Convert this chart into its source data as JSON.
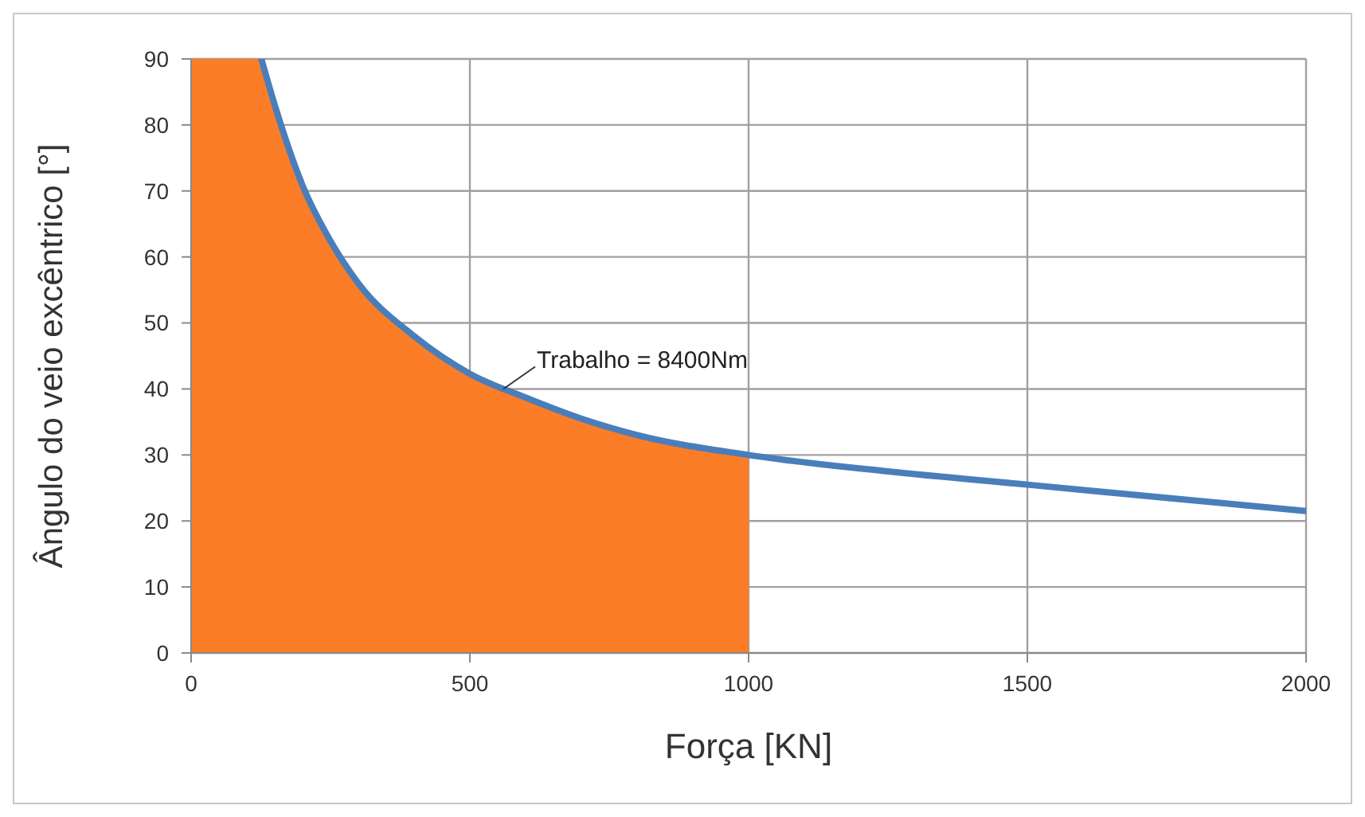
{
  "chart_data": {
    "type": "line",
    "xlabel": "Força [KN]",
    "ylabel": "Ângulo do veio excêntrico [°]",
    "xlim": [
      0,
      2000
    ],
    "xticks": [
      0,
      500,
      1000,
      1500,
      2000
    ],
    "ylim": [
      0,
      90
    ],
    "yticks": [
      0,
      10,
      20,
      30,
      40,
      50,
      60,
      70,
      80,
      90
    ],
    "grid": true,
    "legend": false,
    "marker": "none",
    "line_style": "solid",
    "annotations": [
      {
        "text": "Trabalho = 8400Nm",
        "x": 560,
        "y": 40
      }
    ],
    "series": [
      {
        "type": "area",
        "color": "#fb7d27",
        "x": [
          0,
          126,
          150,
          200,
          250,
          300,
          400,
          500,
          600,
          700,
          800,
          1000
        ],
        "values": [
          90,
          90,
          83,
          70.8,
          62.4,
          56,
          48,
          42.3,
          38.7,
          35.5,
          33,
          30
        ]
      },
      {
        "type": "line",
        "color": "#4a7ebb",
        "x": [
          126,
          150,
          200,
          250,
          300,
          400,
          500,
          600,
          700,
          800,
          1000,
          1250,
          1500,
          1750,
          2000
        ],
        "values": [
          90,
          83,
          70.8,
          62.4,
          56,
          48,
          42.3,
          38.7,
          35.5,
          33,
          30,
          27.5,
          25.5,
          23.5,
          21.5
        ]
      }
    ]
  }
}
